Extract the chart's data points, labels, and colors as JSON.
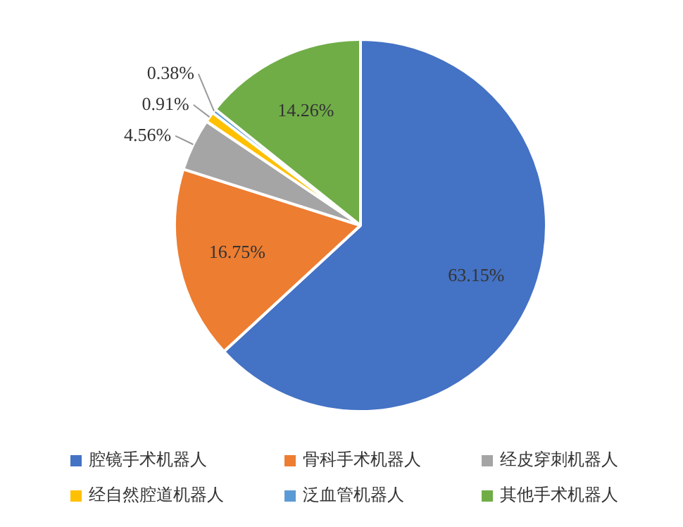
{
  "chart_data": {
    "type": "pie",
    "categories": [
      "腔镜手术机器人",
      "骨科手术机器人",
      "经皮穿刺机器人",
      "经自然腔道机器人",
      "泛血管机器人",
      "其他手术机器人"
    ],
    "values": [
      63.15,
      16.75,
      4.56,
      0.91,
      0.38,
      14.26
    ],
    "value_labels": [
      "63.15%",
      "16.75%",
      "4.56%",
      "0.91%",
      "0.38%",
      "14.26%"
    ],
    "colors": [
      "#4472c4",
      "#ed7d31",
      "#a5a5a5",
      "#ffc000",
      "#5b9bd5",
      "#70ad47"
    ],
    "legend": "bottom"
  }
}
